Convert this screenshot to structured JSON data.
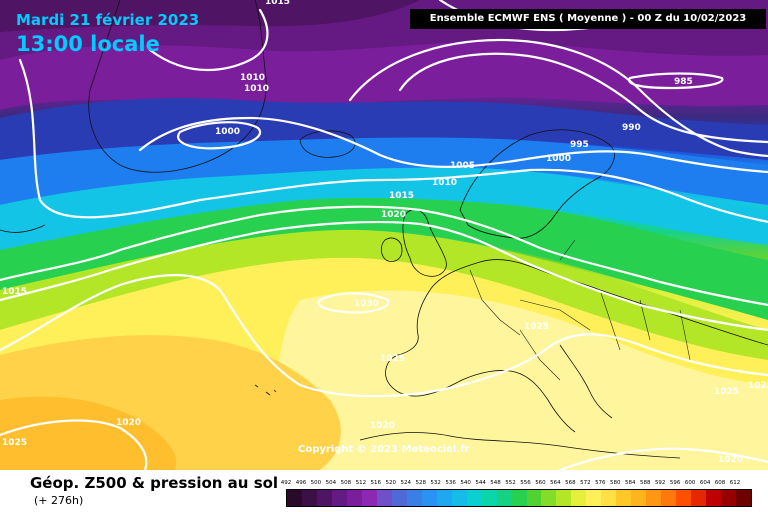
{
  "header": {
    "date": "Mardi 21 février 2023",
    "time": "13:00 locale",
    "run_info": "Ensemble ECMWF ENS  ( Moyenne )  -  00 Z du 10/02/2023"
  },
  "copyright": "Copyright © 2023 Meteociel.fr",
  "footer": {
    "product": "Géop. Z500 & pression au sol",
    "lead_time": "(+ 276h)"
  },
  "isobar_labels": [
    "1015",
    "1010",
    "1010",
    "1000",
    "985",
    "990",
    "995",
    "1000",
    "1005",
    "1010",
    "1015",
    "1020",
    "1015",
    "1030",
    "1025",
    "1025",
    "1025",
    "1020",
    "1020",
    "1025",
    "1020",
    "1025"
  ],
  "colorscale": {
    "labels": [
      "492",
      "496",
      "500",
      "504",
      "508",
      "512",
      "516",
      "520",
      "524",
      "528",
      "532",
      "536",
      "540",
      "544",
      "548",
      "552",
      "556",
      "560",
      "564",
      "568",
      "572",
      "576",
      "580",
      "584",
      "588",
      "592",
      "596",
      "600",
      "604",
      "608",
      "612"
    ],
    "colors": [
      "#2a0a2a",
      "#3c0f46",
      "#501464",
      "#641a82",
      "#7a1e9c",
      "#8c28b4",
      "#6e50c8",
      "#4f6ad6",
      "#3a7ee6",
      "#2a92f0",
      "#1ea8f0",
      "#14bce6",
      "#0ad0d2",
      "#0ad6aa",
      "#14d282",
      "#28d050",
      "#50d232",
      "#82dc28",
      "#b4e628",
      "#e6f03c",
      "#fff05a",
      "#ffe146",
      "#ffc828",
      "#ffb41e",
      "#ff9614",
      "#ff780a",
      "#ff5000",
      "#e62800",
      "#c00000",
      "#960000",
      "#6e0000"
    ]
  }
}
